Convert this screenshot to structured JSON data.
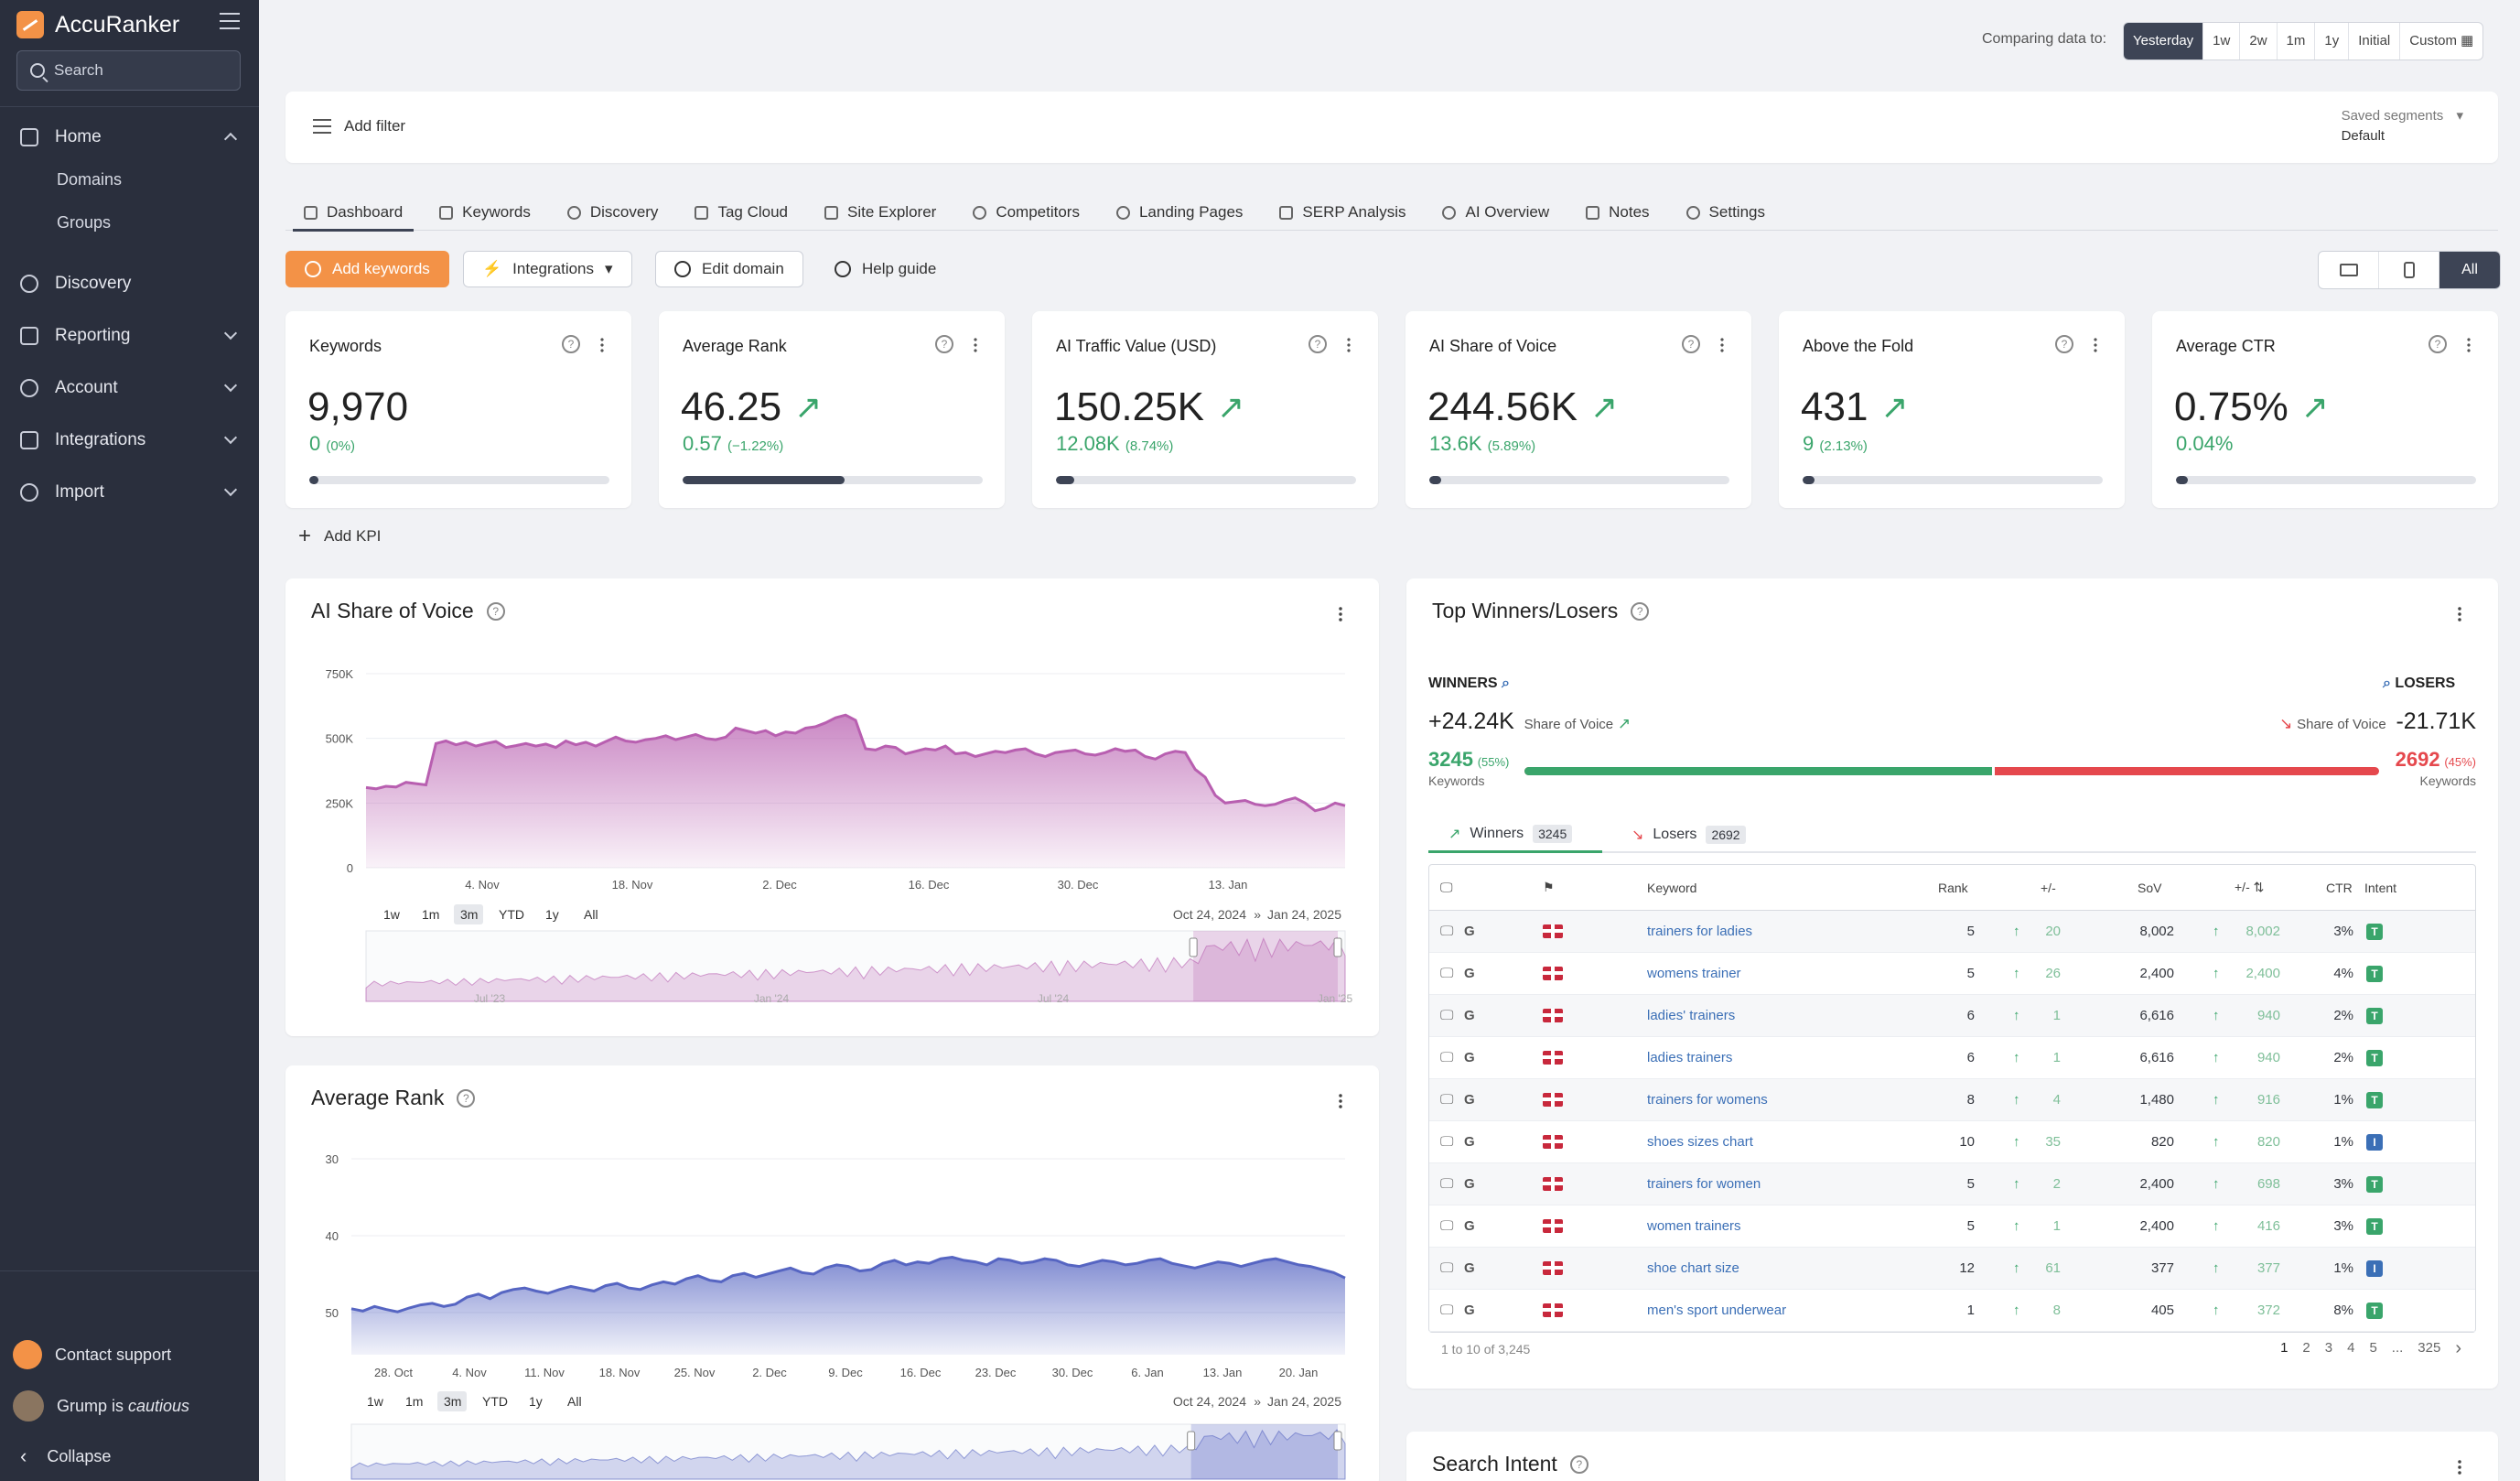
{
  "app": {
    "name": "AccuRanker",
    "search_placeholder": "Search"
  },
  "sidebar": {
    "items": [
      {
        "label": "Home"
      },
      {
        "label": "Discovery"
      },
      {
        "label": "Reporting"
      },
      {
        "label": "Account"
      },
      {
        "label": "Integrations"
      },
      {
        "label": "Import"
      }
    ],
    "home_sub": [
      "Domains",
      "Groups"
    ],
    "footer": {
      "support": "Contact support",
      "grump_prefix": "Grump is ",
      "grump_mood": "cautious",
      "collapse": "Collapse"
    }
  },
  "compare": {
    "label": "Comparing data to:",
    "options": [
      "Yesterday",
      "1w",
      "2w",
      "1m",
      "1y",
      "Initial",
      "Custom"
    ],
    "selected": "Yesterday"
  },
  "filter": {
    "add_filter": "Add filter",
    "saved_label": "Saved segments",
    "saved_value": "Default"
  },
  "tabs": [
    "Dashboard",
    "Keywords",
    "Discovery",
    "Tag Cloud",
    "Site Explorer",
    "Competitors",
    "Landing Pages",
    "SERP Analysis",
    "AI Overview",
    "Notes",
    "Settings"
  ],
  "actions": {
    "add_keywords": "Add keywords",
    "integrations": "Integrations",
    "edit_domain": "Edit domain",
    "help_guide": "Help guide",
    "device_all": "All"
  },
  "kpis": [
    {
      "title": "Keywords",
      "value": "9,970",
      "change": "0",
      "pct": "(0%)",
      "fill": 0.03,
      "trend": false
    },
    {
      "title": "Average Rank",
      "value": "46.25",
      "change": "0.57",
      "pct": "(−1.22%)",
      "fill": 0.54,
      "trend": true
    },
    {
      "title": "AI Traffic Value (USD)",
      "value": "150.25K",
      "change": "12.08K",
      "pct": "(8.74%)",
      "fill": 0.06,
      "trend": true
    },
    {
      "title": "AI Share of Voice",
      "value": "244.56K",
      "change": "13.6K",
      "pct": "(5.89%)",
      "fill": 0.04,
      "trend": true
    },
    {
      "title": "Above the Fold",
      "value": "431",
      "change": "9",
      "pct": "(2.13%)",
      "fill": 0.04,
      "trend": true
    },
    {
      "title": "Average CTR",
      "value": "0.75%",
      "change": "0.04%",
      "pct": "",
      "fill": 0.04,
      "trend": true
    }
  ],
  "add_kpi": "Add KPI",
  "sov_chart": {
    "title": "AI Share of Voice",
    "ranges": [
      "1w",
      "1m",
      "3m",
      "YTD",
      "1y",
      "All"
    ],
    "range_selected": "3m",
    "date_from": "Oct 24, 2024",
    "date_sep": "»",
    "date_to": "Jan 24, 2025",
    "navigator_ticks": [
      "Jul '23",
      "Jan '24",
      "Jul '24",
      "Jan '25"
    ]
  },
  "rank_chart": {
    "title": "Average Rank",
    "ranges": [
      "1w",
      "1m",
      "3m",
      "YTD",
      "1y",
      "All"
    ],
    "range_selected": "3m",
    "date_from": "Oct 24, 2024",
    "date_sep": "»",
    "date_to": "Jan 24, 2025"
  },
  "chart_data": [
    {
      "type": "area",
      "title": "AI Share of Voice",
      "x_ticks": [
        "4. Nov",
        "18. Nov",
        "2. Dec",
        "16. Dec",
        "30. Dec",
        "13. Jan"
      ],
      "y_ticks": [
        "0",
        "250K",
        "500K",
        "750K"
      ],
      "ylim": [
        0,
        750000
      ],
      "color": "#b85fb0",
      "series": [
        {
          "values": [
            310000,
            305000,
            315000,
            312000,
            330000,
            325000,
            320000,
            480000,
            490000,
            475000,
            485000,
            470000,
            480000,
            488000,
            465000,
            472000,
            480000,
            470000,
            478000,
            465000,
            490000,
            475000,
            485000,
            470000,
            488000,
            505000,
            490000,
            485000,
            495000,
            500000,
            510000,
            495000,
            505000,
            515000,
            500000,
            495000,
            505000,
            540000,
            530000,
            520000,
            530000,
            510000,
            525000,
            520000,
            540000,
            545000,
            560000,
            580000,
            590000,
            570000,
            460000,
            455000,
            470000,
            465000,
            440000,
            450000,
            460000,
            455000,
            470000,
            440000,
            445000,
            430000,
            440000,
            450000,
            445000,
            455000,
            460000,
            440000,
            430000,
            445000,
            450000,
            455000,
            440000,
            435000,
            445000,
            460000,
            450000,
            455000,
            430000,
            420000,
            440000,
            450000,
            445000,
            380000,
            350000,
            280000,
            250000,
            255000,
            260000,
            245000,
            240000,
            245000,
            260000,
            270000,
            250000,
            220000,
            230000,
            250000,
            240000
          ]
        }
      ]
    },
    {
      "type": "area",
      "title": "Average Rank",
      "x_ticks": [
        "28. Oct",
        "4. Nov",
        "11. Nov",
        "18. Nov",
        "25. Nov",
        "2. Dec",
        "9. Dec",
        "16. Dec",
        "23. Dec",
        "30. Dec",
        "6. Jan",
        "13. Jan",
        "20. Jan"
      ],
      "y_ticks": [
        "30",
        "40",
        "50"
      ],
      "ylim": [
        30,
        55
      ],
      "y_reversed": true,
      "color": "#5665c2",
      "series": [
        {
          "values": [
            49.5,
            49.8,
            49.2,
            49.6,
            49.9,
            49.4,
            49.0,
            48.8,
            49.2,
            48.9,
            48.0,
            47.6,
            48.2,
            47.4,
            47.0,
            46.8,
            47.2,
            47.5,
            47.0,
            46.6,
            46.9,
            47.2,
            46.5,
            46.2,
            46.8,
            47.0,
            46.4,
            46.0,
            46.3,
            45.6,
            45.2,
            45.8,
            46.0,
            45.2,
            44.9,
            45.4,
            45.0,
            44.6,
            44.2,
            44.8,
            45.0,
            44.2,
            43.8,
            44.0,
            44.6,
            44.4,
            43.6,
            43.2,
            43.8,
            43.4,
            43.6,
            43.0,
            42.8,
            43.2,
            43.4,
            43.8,
            43.0,
            43.2,
            43.6,
            43.4,
            43.0,
            43.2,
            43.8,
            44.0,
            43.6,
            43.2,
            43.4,
            43.8,
            43.6,
            43.2,
            43.0,
            43.6,
            43.9,
            44.2,
            43.8,
            43.4,
            43.6,
            44.0,
            43.6,
            43.2,
            43.0,
            43.4,
            43.8,
            44.0,
            44.4,
            44.8,
            45.5
          ]
        }
      ]
    }
  ],
  "winners": {
    "title": "Top Winners/Losers",
    "winners_label": "WINNERS",
    "losers_label": "LOSERS",
    "win_value": "+24.24K",
    "lose_value": "-21.71K",
    "sov_label": "Share of Voice",
    "win_count": "3245",
    "win_pct": "(55%)",
    "lose_count": "2692",
    "lose_pct": "(45%)",
    "keywords_label": "Keywords",
    "win_share": 0.55,
    "tab_winners": "Winners",
    "tab_winners_count": "3245",
    "tab_losers": "Losers",
    "tab_losers_count": "2692",
    "columns": [
      "Keyword",
      "Rank",
      "+/-",
      "SoV",
      "+/-",
      "CTR",
      "Intent"
    ],
    "rows": [
      {
        "keyword": "trainers for ladies",
        "rank": "5",
        "change": "20",
        "sov": "8,002",
        "sov_change": "8,002",
        "ctr": "3%",
        "intent": "T"
      },
      {
        "keyword": "womens trainer",
        "rank": "5",
        "change": "26",
        "sov": "2,400",
        "sov_change": "2,400",
        "ctr": "4%",
        "intent": "T"
      },
      {
        "keyword": "ladies' trainers",
        "rank": "6",
        "change": "1",
        "sov": "6,616",
        "sov_change": "940",
        "ctr": "2%",
        "intent": "T"
      },
      {
        "keyword": "ladies trainers",
        "rank": "6",
        "change": "1",
        "sov": "6,616",
        "sov_change": "940",
        "ctr": "2%",
        "intent": "T"
      },
      {
        "keyword": "trainers for womens",
        "rank": "8",
        "change": "4",
        "sov": "1,480",
        "sov_change": "916",
        "ctr": "1%",
        "intent": "T"
      },
      {
        "keyword": "shoes sizes chart",
        "rank": "10",
        "change": "35",
        "sov": "820",
        "sov_change": "820",
        "ctr": "1%",
        "intent": "I"
      },
      {
        "keyword": "trainers for women",
        "rank": "5",
        "change": "2",
        "sov": "2,400",
        "sov_change": "698",
        "ctr": "3%",
        "intent": "T"
      },
      {
        "keyword": "women trainers",
        "rank": "5",
        "change": "1",
        "sov": "2,400",
        "sov_change": "416",
        "ctr": "3%",
        "intent": "T"
      },
      {
        "keyword": "shoe chart size",
        "rank": "12",
        "change": "61",
        "sov": "377",
        "sov_change": "377",
        "ctr": "1%",
        "intent": "I"
      },
      {
        "keyword": "men's sport underwear",
        "rank": "1",
        "change": "8",
        "sov": "405",
        "sov_change": "372",
        "ctr": "8%",
        "intent": "T"
      }
    ],
    "range_text": "1 to 10 of 3,245",
    "pages": [
      "1",
      "2",
      "3",
      "4",
      "5",
      "...",
      "325"
    ]
  },
  "search_intent": {
    "title": "Search Intent"
  },
  "colors": {
    "accent": "#f39247",
    "sidebar": "#2a2f3d",
    "positive": "#3aa56b",
    "negative": "#e5484d",
    "sov": "#b85fb0",
    "rank": "#5665c2",
    "link": "#3b6fb6"
  }
}
